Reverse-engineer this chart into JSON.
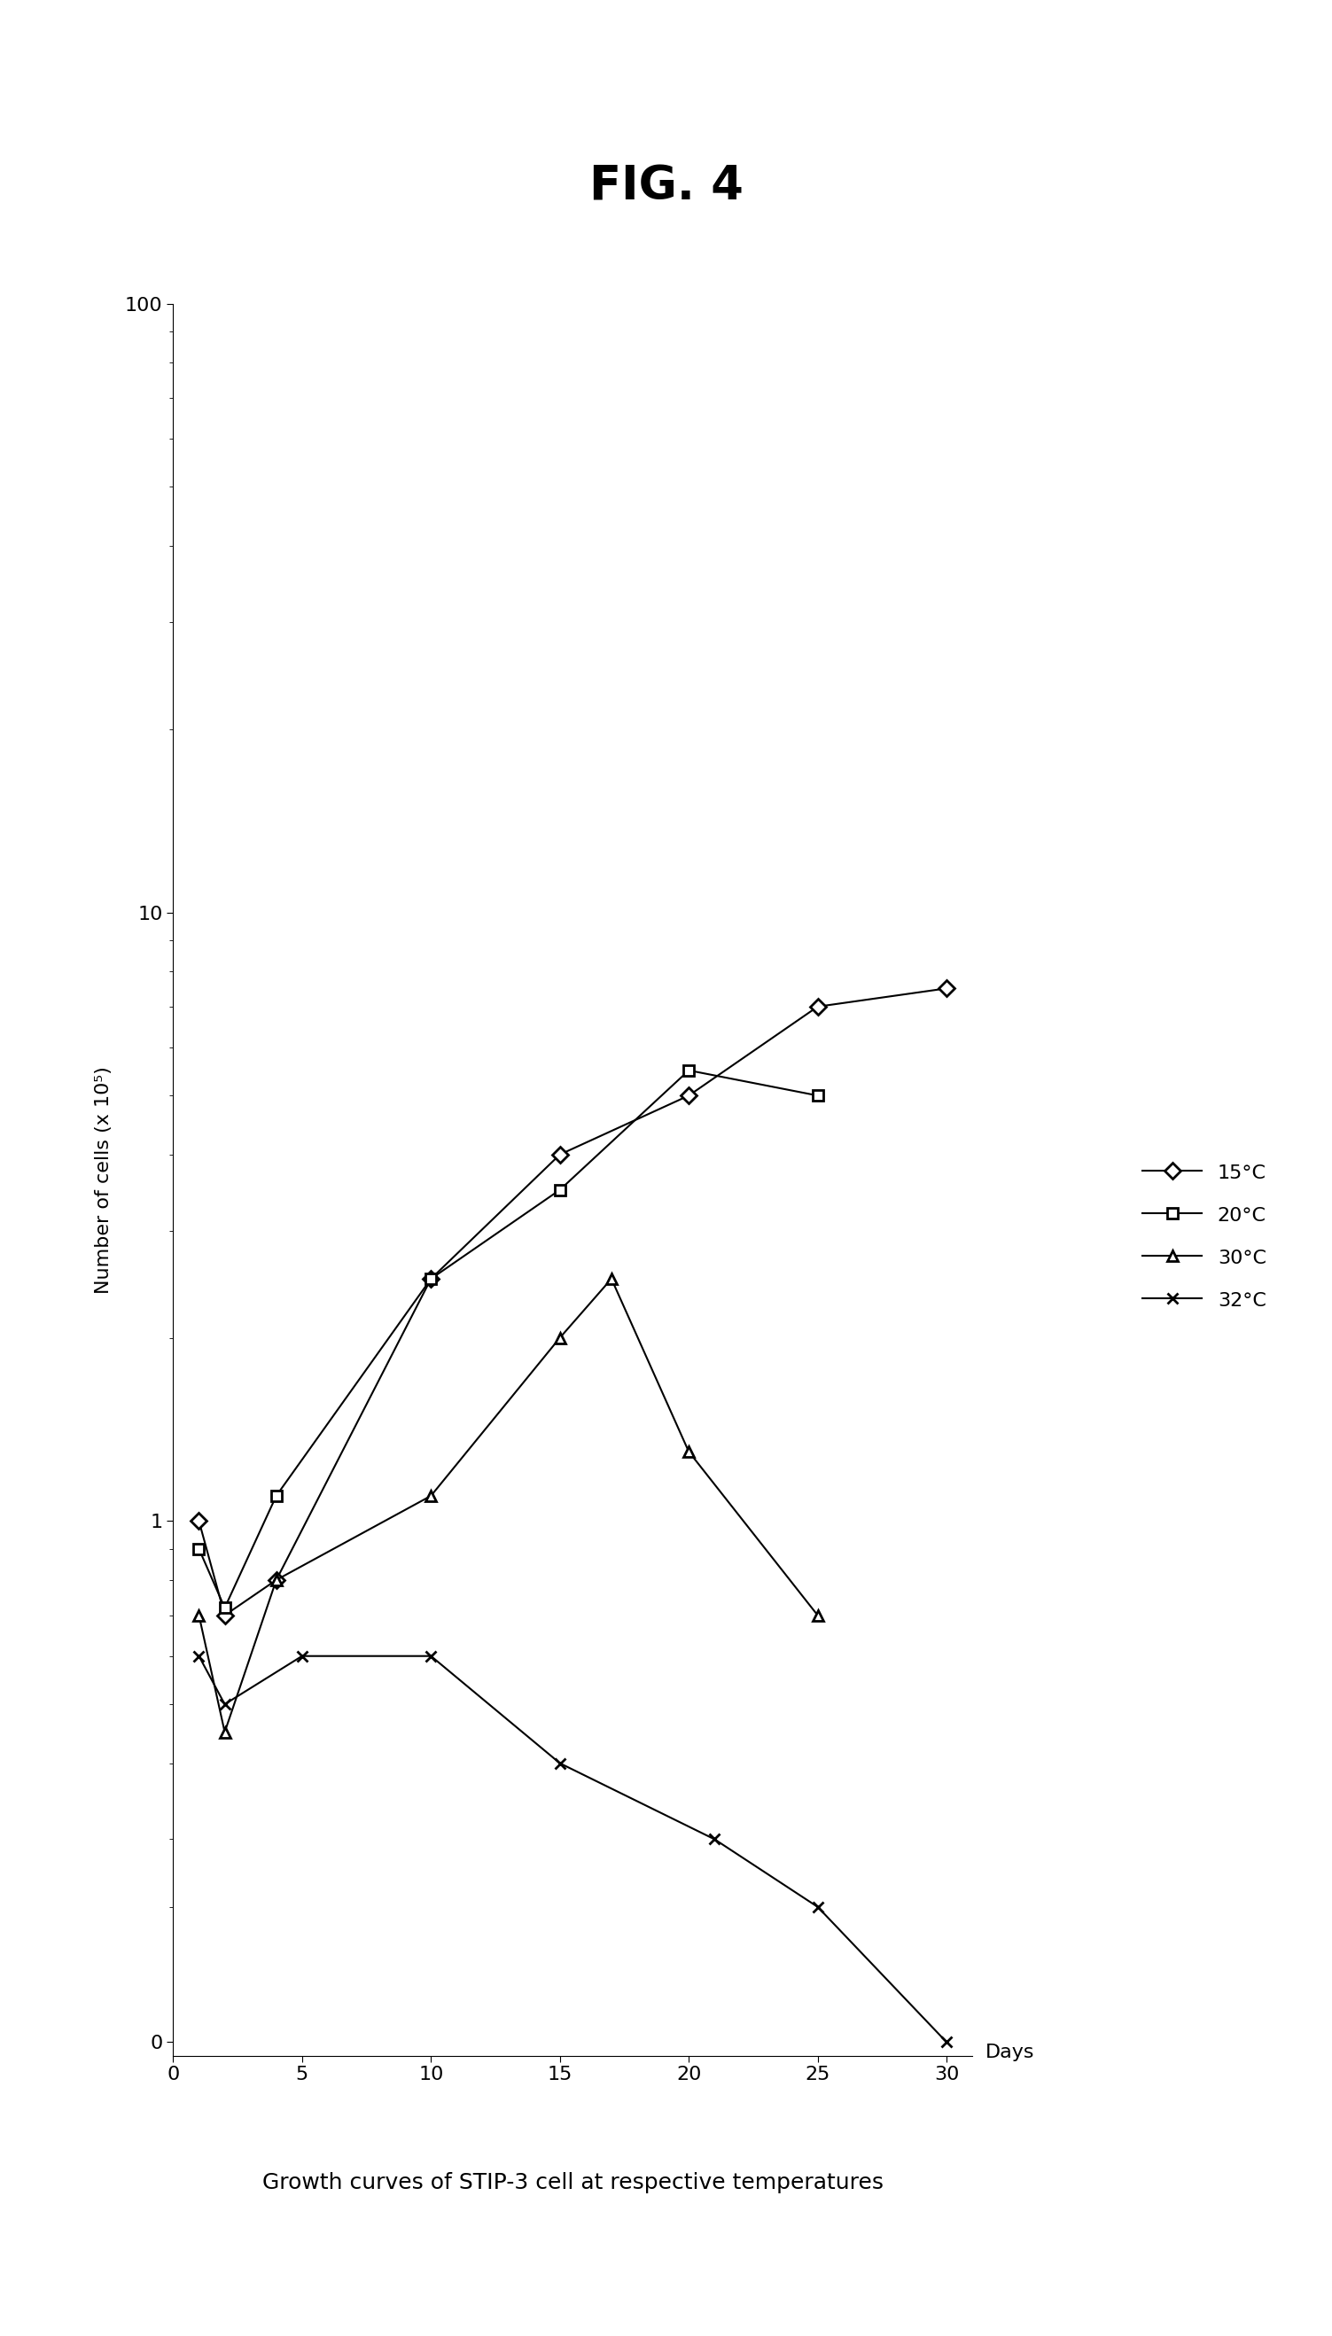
{
  "title": "FIG. 4",
  "subtitle": "Growth curves of STIP-3 cell at respective temperatures",
  "ylabel": "Number of cells (x 10⁵)",
  "xlabel": "Days",
  "series": [
    {
      "label": "15°C",
      "marker": "D",
      "x": [
        1,
        2,
        4,
        10,
        15,
        20,
        25,
        30
      ],
      "y": [
        1.0,
        0.7,
        0.8,
        2.5,
        4.0,
        5.0,
        7.0,
        7.5
      ]
    },
    {
      "label": "20°C",
      "marker": "s",
      "x": [
        1,
        2,
        4,
        10,
        15,
        20,
        25
      ],
      "y": [
        0.9,
        0.72,
        1.1,
        2.5,
        3.5,
        5.5,
        5.0
      ]
    },
    {
      "label": "30°C",
      "marker": "^",
      "x": [
        1,
        2,
        4,
        10,
        15,
        17,
        20,
        25
      ],
      "y": [
        0.7,
        0.45,
        0.8,
        1.1,
        2.0,
        2.5,
        1.3,
        0.7
      ]
    },
    {
      "label": "32°C",
      "marker": "x",
      "x": [
        1,
        2,
        5,
        10,
        15,
        21,
        25,
        30
      ],
      "y": [
        0.6,
        0.5,
        0.6,
        0.6,
        0.4,
        0.3,
        0.2,
        0.0
      ]
    }
  ],
  "ylim_log": [
    0.3,
    100
  ],
  "xlim": [
    0,
    31
  ],
  "xticks": [
    0,
    5,
    10,
    15,
    20,
    25,
    30
  ],
  "background_color": "#ffffff",
  "line_color": "#000000",
  "title_fontsize": 38,
  "subtitle_fontsize": 18,
  "axis_label_fontsize": 16,
  "tick_fontsize": 16,
  "legend_fontsize": 16
}
